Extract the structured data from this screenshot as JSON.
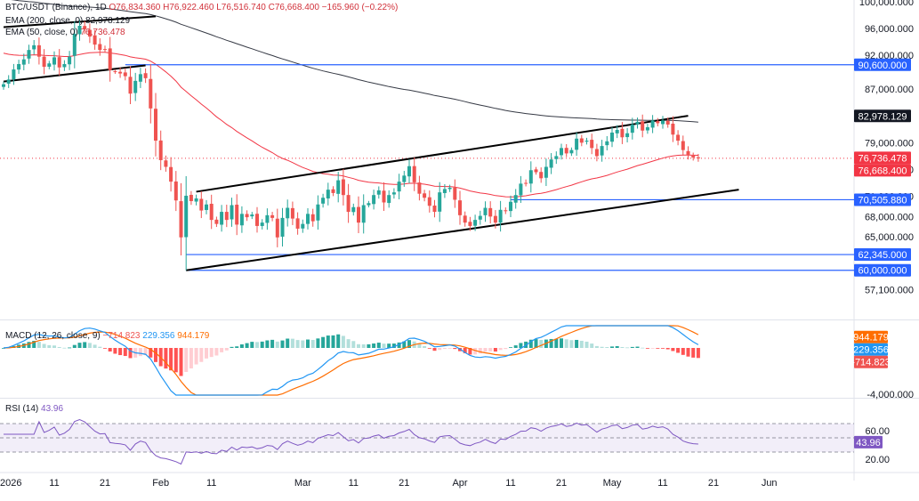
{
  "legend": {
    "symbol": "BTC/USDT (Binance), 1D",
    "open": "O76,834.360",
    "high": "H76,922.460",
    "low": "L76,516.740",
    "close": "C76,668.400",
    "change": "−165.960 (−0.22%)",
    "ema200_label": "EMA (200, close, 0)",
    "ema200_value": "82,978.129",
    "ema50_label": "EMA (50, close, 0)",
    "ema50_value": "76,736.478",
    "macd_label": "MACD (12, 26, close, 9)",
    "macd_hist": "−714.823",
    "macd_line": "229.356",
    "macd_signal": "944.179",
    "rsi_label": "RSI (14)",
    "rsi_value": "43.96"
  },
  "colors": {
    "up": "#26a69a",
    "down": "#ef5350",
    "ema50": "#f23645",
    "ema200": "#363a45",
    "level": "#2962ff",
    "trend": "#000000",
    "macd": "#2196f3",
    "signal": "#ff6d00",
    "rsi": "#7e57c2"
  },
  "chart_data": {
    "type": "candlestick",
    "price_axis": {
      "ylim": [
        55000,
        101000
      ],
      "ticks": [
        {
          "v": 100000,
          "label": "100,000.000"
        },
        {
          "v": 96000,
          "label": "96,000.000"
        },
        {
          "v": 92000,
          "label": "92,000.000"
        },
        {
          "v": 87000,
          "label": "87,000.000"
        },
        {
          "v": 79000,
          "label": "79,000.000"
        },
        {
          "v": 75000,
          "label": "75,000.000"
        },
        {
          "v": 71000,
          "label": "71,000.000"
        },
        {
          "v": 68000,
          "label": "68,000.000"
        },
        {
          "v": 65000,
          "label": "65,000.000"
        },
        {
          "v": 57100,
          "label": "57,100.000"
        }
      ]
    },
    "price_badges": [
      {
        "v": 90600,
        "label": "90,600.000",
        "kind": "level"
      },
      {
        "v": 82978.129,
        "label": "82,978.129",
        "kind": "ema200"
      },
      {
        "v": 76736.478,
        "label": "76,736.478",
        "kind": "ema50"
      },
      {
        "v": 76668.4,
        "label": "76,668.400",
        "kind": "last"
      },
      {
        "v": 70505.88,
        "label": "70,505.880",
        "kind": "level"
      },
      {
        "v": 62345,
        "label": "62,345.000",
        "kind": "level"
      },
      {
        "v": 60000,
        "label": "60,000.000",
        "kind": "level"
      }
    ],
    "horizontal_levels": [
      {
        "v": 90600,
        "from_day": 24
      },
      {
        "v": 70505.88,
        "from_day": 100
      },
      {
        "v": 62345,
        "from_day": 36
      },
      {
        "v": 60000,
        "from_day": 36
      }
    ],
    "trendlines": [
      {
        "from": [
          0,
          88100
        ],
        "to": [
          28,
          90500
        ]
      },
      {
        "from": [
          36,
          60000
        ],
        "to": [
          145,
          72000
        ]
      },
      {
        "from": [
          38,
          71700
        ],
        "to": [
          135,
          83000
        ]
      },
      {
        "from": [
          0,
          96200
        ],
        "to": [
          30,
          97800
        ]
      }
    ],
    "x_axis": {
      "start_date": "2026-01-01",
      "days_visible": 165,
      "ticks": [
        {
          "day": 0,
          "label": "2026"
        },
        {
          "day": 10,
          "label": "11"
        },
        {
          "day": 20,
          "label": "21"
        },
        {
          "day": 31,
          "label": "Feb"
        },
        {
          "day": 41,
          "label": "11"
        },
        {
          "day": 59,
          "label": "Mar"
        },
        {
          "day": 69,
          "label": "11"
        },
        {
          "day": 79,
          "label": "21"
        },
        {
          "day": 90,
          "label": "Apr"
        },
        {
          "day": 100,
          "label": "11"
        },
        {
          "day": 110,
          "label": "21"
        },
        {
          "day": 120,
          "label": "May"
        },
        {
          "day": 130,
          "label": "11"
        },
        {
          "day": 140,
          "label": "21"
        },
        {
          "day": 151,
          "label": "Jun"
        }
      ]
    },
    "closes": [
      87700,
      88400,
      89900,
      90700,
      91400,
      92800,
      93500,
      91800,
      90300,
      90800,
      91700,
      90200,
      90700,
      91800,
      95200,
      96400,
      95900,
      94800,
      93600,
      92800,
      92900,
      89800,
      89500,
      89300,
      88900,
      86300,
      88200,
      89200,
      88600,
      84100,
      79300,
      76400,
      75400,
      73200,
      70400,
      64900,
      71100,
      70300,
      70700,
      68900,
      69800,
      67500,
      66900,
      68700,
      67500,
      69700,
      66800,
      68400,
      67900,
      68300,
      66600,
      67100,
      68200,
      67800,
      64900,
      67800,
      69300,
      67700,
      66200,
      66900,
      68400,
      67300,
      69800,
      70800,
      72000,
      71500,
      73400,
      71200,
      68700,
      69400,
      67100,
      69700,
      70000,
      71200,
      71900,
      70100,
      71200,
      71600,
      73200,
      74100,
      75500,
      73100,
      71400,
      70800,
      69600,
      68700,
      71600,
      72100,
      72300,
      70500,
      68200,
      67100,
      66600,
      67500,
      68100,
      69300,
      68000,
      67100,
      69000,
      68800,
      70200,
      71200,
      72900,
      73000,
      74900,
      74600,
      73700,
      75400,
      76500,
      77000,
      78200,
      77400,
      77900,
      79600,
      79000,
      79300,
      78200,
      77000,
      78500,
      79200,
      80500,
      80900,
      79800,
      80400,
      81700,
      82100,
      80800,
      81300,
      82300,
      81900,
      82300,
      81700,
      80200,
      79300,
      77900,
      77200,
      76800,
      76669
    ],
    "ema200_label_days": [
      0,
      137
    ],
    "macd_axis": {
      "ylim": [
        -4800,
        2400
      ],
      "ticks": [
        {
          "v": -4000,
          "label": "-4,000.000"
        }
      ]
    },
    "macd_badges": [
      {
        "v": 944.179,
        "label": "944.179",
        "kind": "signal"
      },
      {
        "v": 229.356,
        "label": "229.356",
        "kind": "macd"
      },
      {
        "v": -714.823,
        "label": "-714.823",
        "kind": "hist"
      }
    ],
    "rsi_axis": {
      "ylim": [
        10,
        80
      ],
      "band": [
        30,
        70
      ],
      "mid": 50,
      "ticks": [
        {
          "v": 60,
          "label": "60.00"
        },
        {
          "v": 20,
          "label": "20.00"
        }
      ]
    },
    "rsi_badge": {
      "v": 43.96,
      "label": "43.96"
    }
  }
}
